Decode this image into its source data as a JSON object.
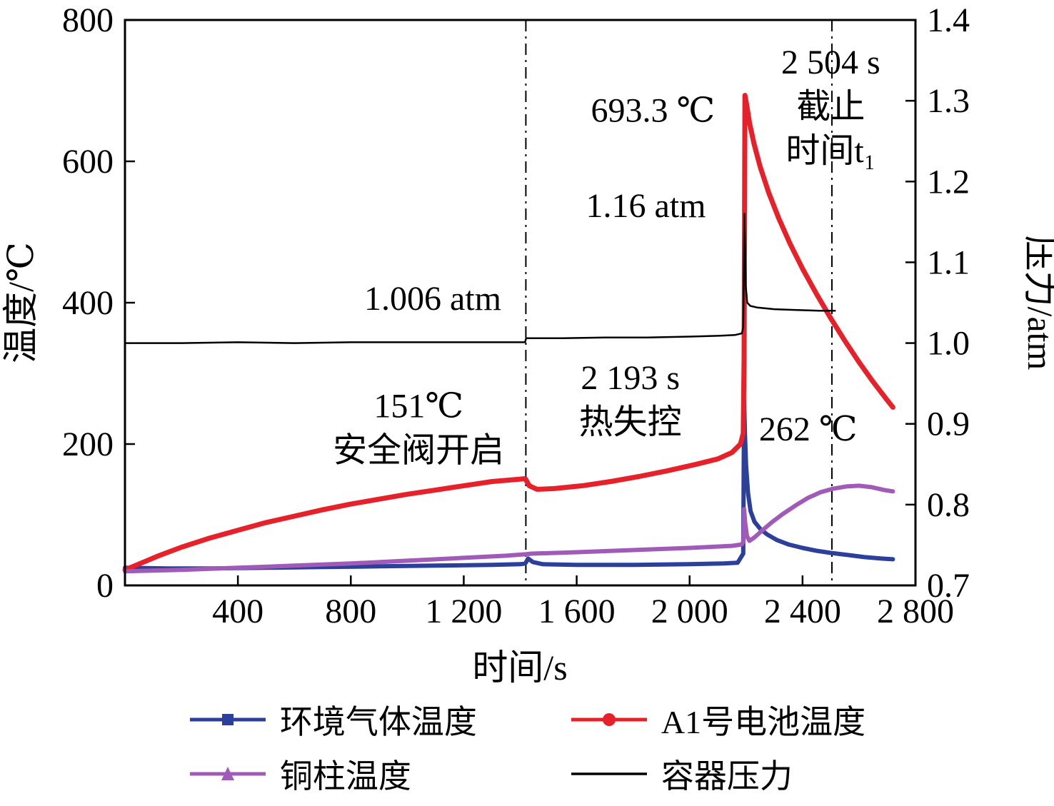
{
  "chart_data": {
    "type": "line",
    "title": "",
    "xlabel": "时间/s",
    "ylabel_left": "温度/℃",
    "ylabel_right": "压力/atm",
    "xlim": [
      0,
      2800
    ],
    "ylim_left": [
      0,
      800
    ],
    "ylim_right": [
      0.7,
      1.4
    ],
    "grid": false,
    "legend_position": "bottom",
    "xticks": {
      "values": [
        400,
        800,
        1200,
        1600,
        2000,
        2400,
        2800
      ],
      "labels": [
        "400",
        "800",
        "1 200",
        "1 600",
        "2 000",
        "2 400",
        "2 800"
      ]
    },
    "yticks_left": {
      "values": [
        0,
        200,
        400,
        600,
        800
      ],
      "labels": [
        "0",
        "200",
        "400",
        "600",
        "800"
      ]
    },
    "yticks_right": {
      "values": [
        0.7,
        0.8,
        0.9,
        1.0,
        1.1,
        1.2,
        1.3,
        1.4
      ],
      "labels": [
        "0.7",
        "0.8",
        "0.9",
        "1.0",
        "1.1",
        "1.2",
        "1.3",
        "1.4"
      ]
    },
    "vlines": [
      1420,
      2504
    ],
    "annotations": [
      {
        "lines": [
          "1.006 atm"
        ],
        "x": 1090,
        "y": 390
      },
      {
        "lines": [
          "151℃",
          "安全阀开启"
        ],
        "x": 1040,
        "y": 238
      },
      {
        "lines": [
          "2 193 s",
          "热失控"
        ],
        "x": 1790,
        "y": 278
      },
      {
        "lines": [
          "693.3 ℃"
        ],
        "x": 1870,
        "y": 656
      },
      {
        "lines": [
          "1.16 atm"
        ],
        "x": 1845,
        "y": 521
      },
      {
        "lines": [
          "2 504 s",
          "截止",
          "时间t₁"
        ],
        "x": 2500,
        "y": 724
      },
      {
        "lines": [
          "262 ℃"
        ],
        "x": 2420,
        "y": 205
      }
    ],
    "series": [
      {
        "name": "环境气体温度",
        "color": "#2b3f9b",
        "axis": "left",
        "marker": "square",
        "line_width": 6,
        "points": [
          [
            0,
            25
          ],
          [
            150,
            24
          ],
          [
            300,
            24
          ],
          [
            500,
            25
          ],
          [
            700,
            26
          ],
          [
            900,
            27
          ],
          [
            1100,
            28
          ],
          [
            1300,
            29
          ],
          [
            1400,
            30
          ],
          [
            1418,
            31
          ],
          [
            1428,
            38
          ],
          [
            1445,
            33
          ],
          [
            1480,
            30
          ],
          [
            1600,
            29
          ],
          [
            1800,
            29
          ],
          [
            2000,
            30
          ],
          [
            2120,
            31
          ],
          [
            2170,
            32
          ],
          [
            2190,
            45
          ],
          [
            2193,
            262
          ],
          [
            2196,
            215
          ],
          [
            2200,
            170
          ],
          [
            2207,
            130
          ],
          [
            2216,
            105
          ],
          [
            2230,
            90
          ],
          [
            2250,
            80
          ],
          [
            2275,
            72
          ],
          [
            2310,
            64
          ],
          [
            2350,
            58
          ],
          [
            2400,
            53
          ],
          [
            2450,
            49
          ],
          [
            2500,
            46
          ],
          [
            2560,
            43
          ],
          [
            2620,
            40
          ],
          [
            2680,
            38
          ],
          [
            2720,
            37
          ]
        ]
      },
      {
        "name": "A1号电池温度",
        "color": "#e62129",
        "axis": "left",
        "marker": "circle",
        "line_width": 7,
        "points": [
          [
            0,
            22
          ],
          [
            60,
            32
          ],
          [
            120,
            42
          ],
          [
            200,
            54
          ],
          [
            300,
            67
          ],
          [
            400,
            78
          ],
          [
            500,
            89
          ],
          [
            600,
            98
          ],
          [
            700,
            107
          ],
          [
            800,
            115
          ],
          [
            900,
            122
          ],
          [
            1000,
            129
          ],
          [
            1100,
            135
          ],
          [
            1200,
            141
          ],
          [
            1300,
            147
          ],
          [
            1390,
            150
          ],
          [
            1418,
            151
          ],
          [
            1432,
            141
          ],
          [
            1460,
            136
          ],
          [
            1520,
            137
          ],
          [
            1620,
            141
          ],
          [
            1720,
            147
          ],
          [
            1820,
            154
          ],
          [
            1920,
            162
          ],
          [
            2020,
            171
          ],
          [
            2100,
            179
          ],
          [
            2150,
            188
          ],
          [
            2180,
            200
          ],
          [
            2190,
            215
          ],
          [
            2193,
            320
          ],
          [
            2196,
            693.3
          ],
          [
            2202,
            680
          ],
          [
            2212,
            655
          ],
          [
            2228,
            625
          ],
          [
            2250,
            592
          ],
          [
            2280,
            556
          ],
          [
            2315,
            520
          ],
          [
            2355,
            484
          ],
          [
            2400,
            448
          ],
          [
            2450,
            412
          ],
          [
            2500,
            378
          ],
          [
            2550,
            346
          ],
          [
            2600,
            316
          ],
          [
            2650,
            288
          ],
          [
            2700,
            262
          ],
          [
            2720,
            252
          ]
        ]
      },
      {
        "name": "铜柱温度",
        "color": "#a05ab8",
        "axis": "left",
        "marker": "triangle",
        "line_width": 6,
        "points": [
          [
            0,
            20
          ],
          [
            200,
            22
          ],
          [
            400,
            25
          ],
          [
            600,
            28
          ],
          [
            800,
            31
          ],
          [
            1000,
            35
          ],
          [
            1200,
            39
          ],
          [
            1350,
            42
          ],
          [
            1418,
            44
          ],
          [
            1440,
            45
          ],
          [
            1600,
            47
          ],
          [
            1800,
            50
          ],
          [
            2000,
            53
          ],
          [
            2150,
            56
          ],
          [
            2185,
            58
          ],
          [
            2191,
            62
          ],
          [
            2193,
            108
          ],
          [
            2197,
            88
          ],
          [
            2203,
            70
          ],
          [
            2212,
            63
          ],
          [
            2230,
            68
          ],
          [
            2255,
            77
          ],
          [
            2290,
            89
          ],
          [
            2330,
            101
          ],
          [
            2375,
            113
          ],
          [
            2420,
            124
          ],
          [
            2465,
            132
          ],
          [
            2510,
            137
          ],
          [
            2555,
            140
          ],
          [
            2600,
            141
          ],
          [
            2645,
            139
          ],
          [
            2690,
            135
          ],
          [
            2720,
            133
          ]
        ]
      },
      {
        "name": "容器压力",
        "color": "#000000",
        "axis": "right",
        "marker": "none",
        "line_width": 2.5,
        "points": [
          [
            0,
            1.0
          ],
          [
            200,
            1.0
          ],
          [
            400,
            1.001
          ],
          [
            600,
            1.0
          ],
          [
            800,
            1.001
          ],
          [
            1000,
            1.001
          ],
          [
            1200,
            1.001
          ],
          [
            1417,
            1.001
          ],
          [
            1421,
            1.006
          ],
          [
            1550,
            1.006
          ],
          [
            1700,
            1.007
          ],
          [
            1850,
            1.007
          ],
          [
            2000,
            1.008
          ],
          [
            2100,
            1.009
          ],
          [
            2160,
            1.01
          ],
          [
            2185,
            1.012
          ],
          [
            2190,
            1.02
          ],
          [
            2192,
            1.08
          ],
          [
            2194,
            1.16
          ],
          [
            2196,
            1.13
          ],
          [
            2199,
            1.07
          ],
          [
            2204,
            1.05
          ],
          [
            2215,
            1.046
          ],
          [
            2240,
            1.044
          ],
          [
            2300,
            1.042
          ],
          [
            2380,
            1.041
          ],
          [
            2460,
            1.04
          ],
          [
            2515,
            1.04
          ]
        ]
      }
    ]
  }
}
